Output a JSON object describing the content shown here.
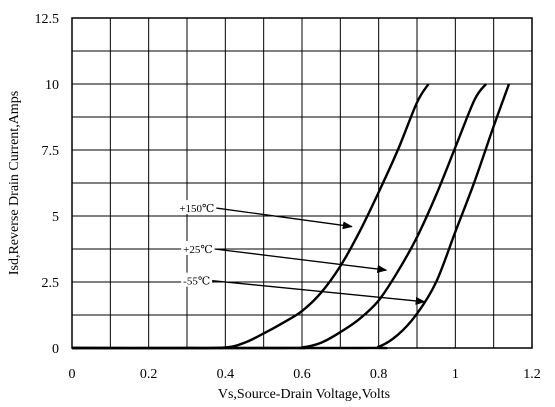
{
  "chart_data": {
    "type": "line",
    "xlabel": "Vs,Source-Drain Voltage,Volts",
    "ylabel": "Isd,Reverse Drain Current,Amps",
    "xlim": [
      0,
      1.2
    ],
    "ylim": [
      0,
      12.5
    ],
    "x_ticks": [
      "0",
      "0.2",
      "0.4",
      "0.6",
      "0.8",
      "1",
      "1.2"
    ],
    "y_ticks": [
      "0",
      "2.5",
      "5",
      "7.5",
      "10",
      "12.5"
    ],
    "grid": true,
    "series": [
      {
        "name": "+150℃",
        "points": [
          [
            0.0,
            0.0
          ],
          [
            0.3,
            0.0
          ],
          [
            0.4,
            0.02
          ],
          [
            0.45,
            0.2
          ],
          [
            0.5,
            0.55
          ],
          [
            0.55,
            0.95
          ],
          [
            0.6,
            1.4
          ],
          [
            0.65,
            2.1
          ],
          [
            0.7,
            3.1
          ],
          [
            0.75,
            4.4
          ],
          [
            0.8,
            5.9
          ],
          [
            0.85,
            7.5
          ],
          [
            0.9,
            9.3
          ],
          [
            0.93,
            10.0
          ]
        ]
      },
      {
        "name": "+25℃",
        "points": [
          [
            0.0,
            0.0
          ],
          [
            0.55,
            0.0
          ],
          [
            0.6,
            0.02
          ],
          [
            0.65,
            0.2
          ],
          [
            0.7,
            0.6
          ],
          [
            0.75,
            1.1
          ],
          [
            0.8,
            1.8
          ],
          [
            0.85,
            2.9
          ],
          [
            0.9,
            4.2
          ],
          [
            0.95,
            5.8
          ],
          [
            1.0,
            7.6
          ],
          [
            1.05,
            9.4
          ],
          [
            1.08,
            10.0
          ]
        ]
      },
      {
        "name": "-55℃",
        "points": [
          [
            0.0,
            0.0
          ],
          [
            0.75,
            0.0
          ],
          [
            0.8,
            0.05
          ],
          [
            0.85,
            0.5
          ],
          [
            0.9,
            1.3
          ],
          [
            0.95,
            2.5
          ],
          [
            1.0,
            4.4
          ],
          [
            1.05,
            6.3
          ],
          [
            1.1,
            8.4
          ],
          [
            1.14,
            10.0
          ]
        ]
      }
    ],
    "annotations": [
      {
        "text": "+150℃",
        "label_at": [
          0.28,
          5.3
        ],
        "arrow_to": [
          0.73,
          4.6
        ]
      },
      {
        "text": "+25℃",
        "label_at": [
          0.29,
          3.75
        ],
        "arrow_to": [
          0.82,
          2.95
        ]
      },
      {
        "text": "-55℃",
        "label_at": [
          0.29,
          2.55
        ],
        "arrow_to": [
          0.92,
          1.75
        ]
      }
    ]
  }
}
